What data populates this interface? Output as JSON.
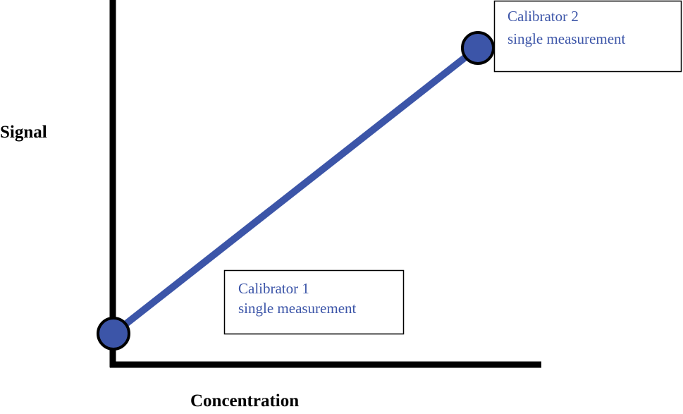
{
  "axes": {
    "y_label": "Signal",
    "x_label": "Concentration"
  },
  "nodes": [
    {
      "label": "Calibrator 1",
      "sublabel": "single measurement"
    },
    {
      "label": "Calibrator 2",
      "sublabel": "single measurement"
    }
  ]
}
